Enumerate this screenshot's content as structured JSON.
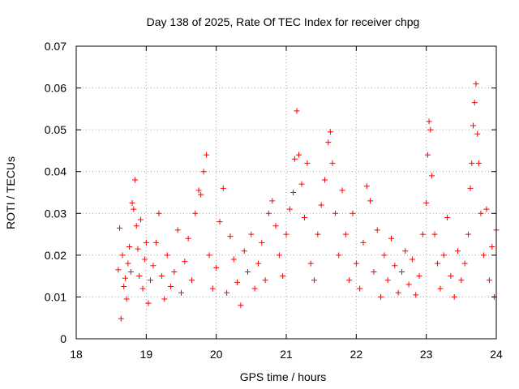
{
  "chart_data": {
    "type": "scatter",
    "title": "Day 138 of 2025, Rate Of TEC Index for receiver chpg",
    "xlabel": "GPS time / hours",
    "ylabel": "ROTI / TECUs",
    "xlim": [
      18,
      24
    ],
    "ylim": [
      0,
      0.07
    ],
    "x_ticks": [
      18,
      19,
      20,
      21,
      22,
      23,
      24
    ],
    "x_tick_labels": [
      "18",
      "19",
      "20",
      "21",
      "22",
      "23",
      "24"
    ],
    "y_ticks": [
      0,
      0.01,
      0.02,
      0.03,
      0.04,
      0.05,
      0.06,
      0.07
    ],
    "y_tick_labels": [
      "0",
      "0.01",
      "0.02",
      "0.03",
      "0.04",
      "0.05",
      "0.06",
      "0.07"
    ],
    "grid": true,
    "marker": "+",
    "marker_color": "#ff0000",
    "series": [
      {
        "name": "ROTI",
        "points": [
          [
            18.6,
            0.0165
          ],
          [
            18.62,
            0.0265
          ],
          [
            18.64,
            0.0048
          ],
          [
            18.66,
            0.02
          ],
          [
            18.68,
            0.0125
          ],
          [
            18.7,
            0.0145
          ],
          [
            18.72,
            0.0095
          ],
          [
            18.74,
            0.018
          ],
          [
            18.76,
            0.022
          ],
          [
            18.78,
            0.016
          ],
          [
            18.8,
            0.0325
          ],
          [
            18.82,
            0.031
          ],
          [
            18.84,
            0.038
          ],
          [
            18.86,
            0.027
          ],
          [
            18.88,
            0.0215
          ],
          [
            18.9,
            0.015
          ],
          [
            18.92,
            0.0285
          ],
          [
            18.95,
            0.012
          ],
          [
            18.98,
            0.019
          ],
          [
            19.0,
            0.023
          ],
          [
            19.03,
            0.0085
          ],
          [
            19.06,
            0.014
          ],
          [
            19.1,
            0.0175
          ],
          [
            19.14,
            0.023
          ],
          [
            19.18,
            0.03
          ],
          [
            19.22,
            0.015
          ],
          [
            19.26,
            0.0095
          ],
          [
            19.3,
            0.02
          ],
          [
            19.35,
            0.0125
          ],
          [
            19.4,
            0.016
          ],
          [
            19.45,
            0.026
          ],
          [
            19.5,
            0.011
          ],
          [
            19.55,
            0.0185
          ],
          [
            19.6,
            0.024
          ],
          [
            19.65,
            0.014
          ],
          [
            19.7,
            0.03
          ],
          [
            19.75,
            0.0355
          ],
          [
            19.78,
            0.0345
          ],
          [
            19.82,
            0.04
          ],
          [
            19.86,
            0.044
          ],
          [
            19.9,
            0.02
          ],
          [
            19.95,
            0.012
          ],
          [
            20.0,
            0.017
          ],
          [
            20.05,
            0.028
          ],
          [
            20.1,
            0.036
          ],
          [
            20.15,
            0.011
          ],
          [
            20.2,
            0.0245
          ],
          [
            20.25,
            0.019
          ],
          [
            20.3,
            0.0135
          ],
          [
            20.35,
            0.008
          ],
          [
            20.4,
            0.021
          ],
          [
            20.45,
            0.016
          ],
          [
            20.5,
            0.025
          ],
          [
            20.55,
            0.012
          ],
          [
            20.6,
            0.018
          ],
          [
            20.65,
            0.023
          ],
          [
            20.7,
            0.014
          ],
          [
            20.75,
            0.03
          ],
          [
            20.8,
            0.033
          ],
          [
            20.85,
            0.027
          ],
          [
            20.9,
            0.02
          ],
          [
            20.95,
            0.015
          ],
          [
            21.0,
            0.025
          ],
          [
            21.05,
            0.031
          ],
          [
            21.1,
            0.035
          ],
          [
            21.12,
            0.043
          ],
          [
            21.15,
            0.0545
          ],
          [
            21.18,
            0.044
          ],
          [
            21.22,
            0.037
          ],
          [
            21.26,
            0.029
          ],
          [
            21.3,
            0.042
          ],
          [
            21.35,
            0.018
          ],
          [
            21.4,
            0.014
          ],
          [
            21.45,
            0.025
          ],
          [
            21.5,
            0.032
          ],
          [
            21.55,
            0.038
          ],
          [
            21.6,
            0.047
          ],
          [
            21.63,
            0.0495
          ],
          [
            21.66,
            0.042
          ],
          [
            21.7,
            0.03
          ],
          [
            21.75,
            0.02
          ],
          [
            21.8,
            0.0355
          ],
          [
            21.85,
            0.025
          ],
          [
            21.9,
            0.014
          ],
          [
            21.95,
            0.03
          ],
          [
            22.0,
            0.018
          ],
          [
            22.05,
            0.012
          ],
          [
            22.1,
            0.023
          ],
          [
            22.15,
            0.0365
          ],
          [
            22.2,
            0.033
          ],
          [
            22.25,
            0.016
          ],
          [
            22.3,
            0.026
          ],
          [
            22.35,
            0.01
          ],
          [
            22.4,
            0.02
          ],
          [
            22.45,
            0.014
          ],
          [
            22.5,
            0.024
          ],
          [
            22.55,
            0.0175
          ],
          [
            22.6,
            0.011
          ],
          [
            22.65,
            0.016
          ],
          [
            22.7,
            0.021
          ],
          [
            22.75,
            0.013
          ],
          [
            22.8,
            0.019
          ],
          [
            22.85,
            0.0105
          ],
          [
            22.9,
            0.015
          ],
          [
            22.95,
            0.025
          ],
          [
            23.0,
            0.0325
          ],
          [
            23.02,
            0.044
          ],
          [
            23.04,
            0.052
          ],
          [
            23.06,
            0.05
          ],
          [
            23.08,
            0.039
          ],
          [
            23.12,
            0.025
          ],
          [
            23.16,
            0.018
          ],
          [
            23.2,
            0.012
          ],
          [
            23.25,
            0.02
          ],
          [
            23.3,
            0.029
          ],
          [
            23.35,
            0.015
          ],
          [
            23.4,
            0.01
          ],
          [
            23.45,
            0.021
          ],
          [
            23.5,
            0.014
          ],
          [
            23.55,
            0.018
          ],
          [
            23.6,
            0.025
          ],
          [
            23.63,
            0.036
          ],
          [
            23.65,
            0.042
          ],
          [
            23.67,
            0.051
          ],
          [
            23.69,
            0.0565
          ],
          [
            23.71,
            0.061
          ],
          [
            23.73,
            0.049
          ],
          [
            23.75,
            0.042
          ],
          [
            23.78,
            0.03
          ],
          [
            23.82,
            0.02
          ],
          [
            23.86,
            0.031
          ],
          [
            23.9,
            0.014
          ],
          [
            23.94,
            0.022
          ],
          [
            23.97,
            0.01
          ],
          [
            24.0,
            0.026
          ]
        ]
      }
    ]
  }
}
